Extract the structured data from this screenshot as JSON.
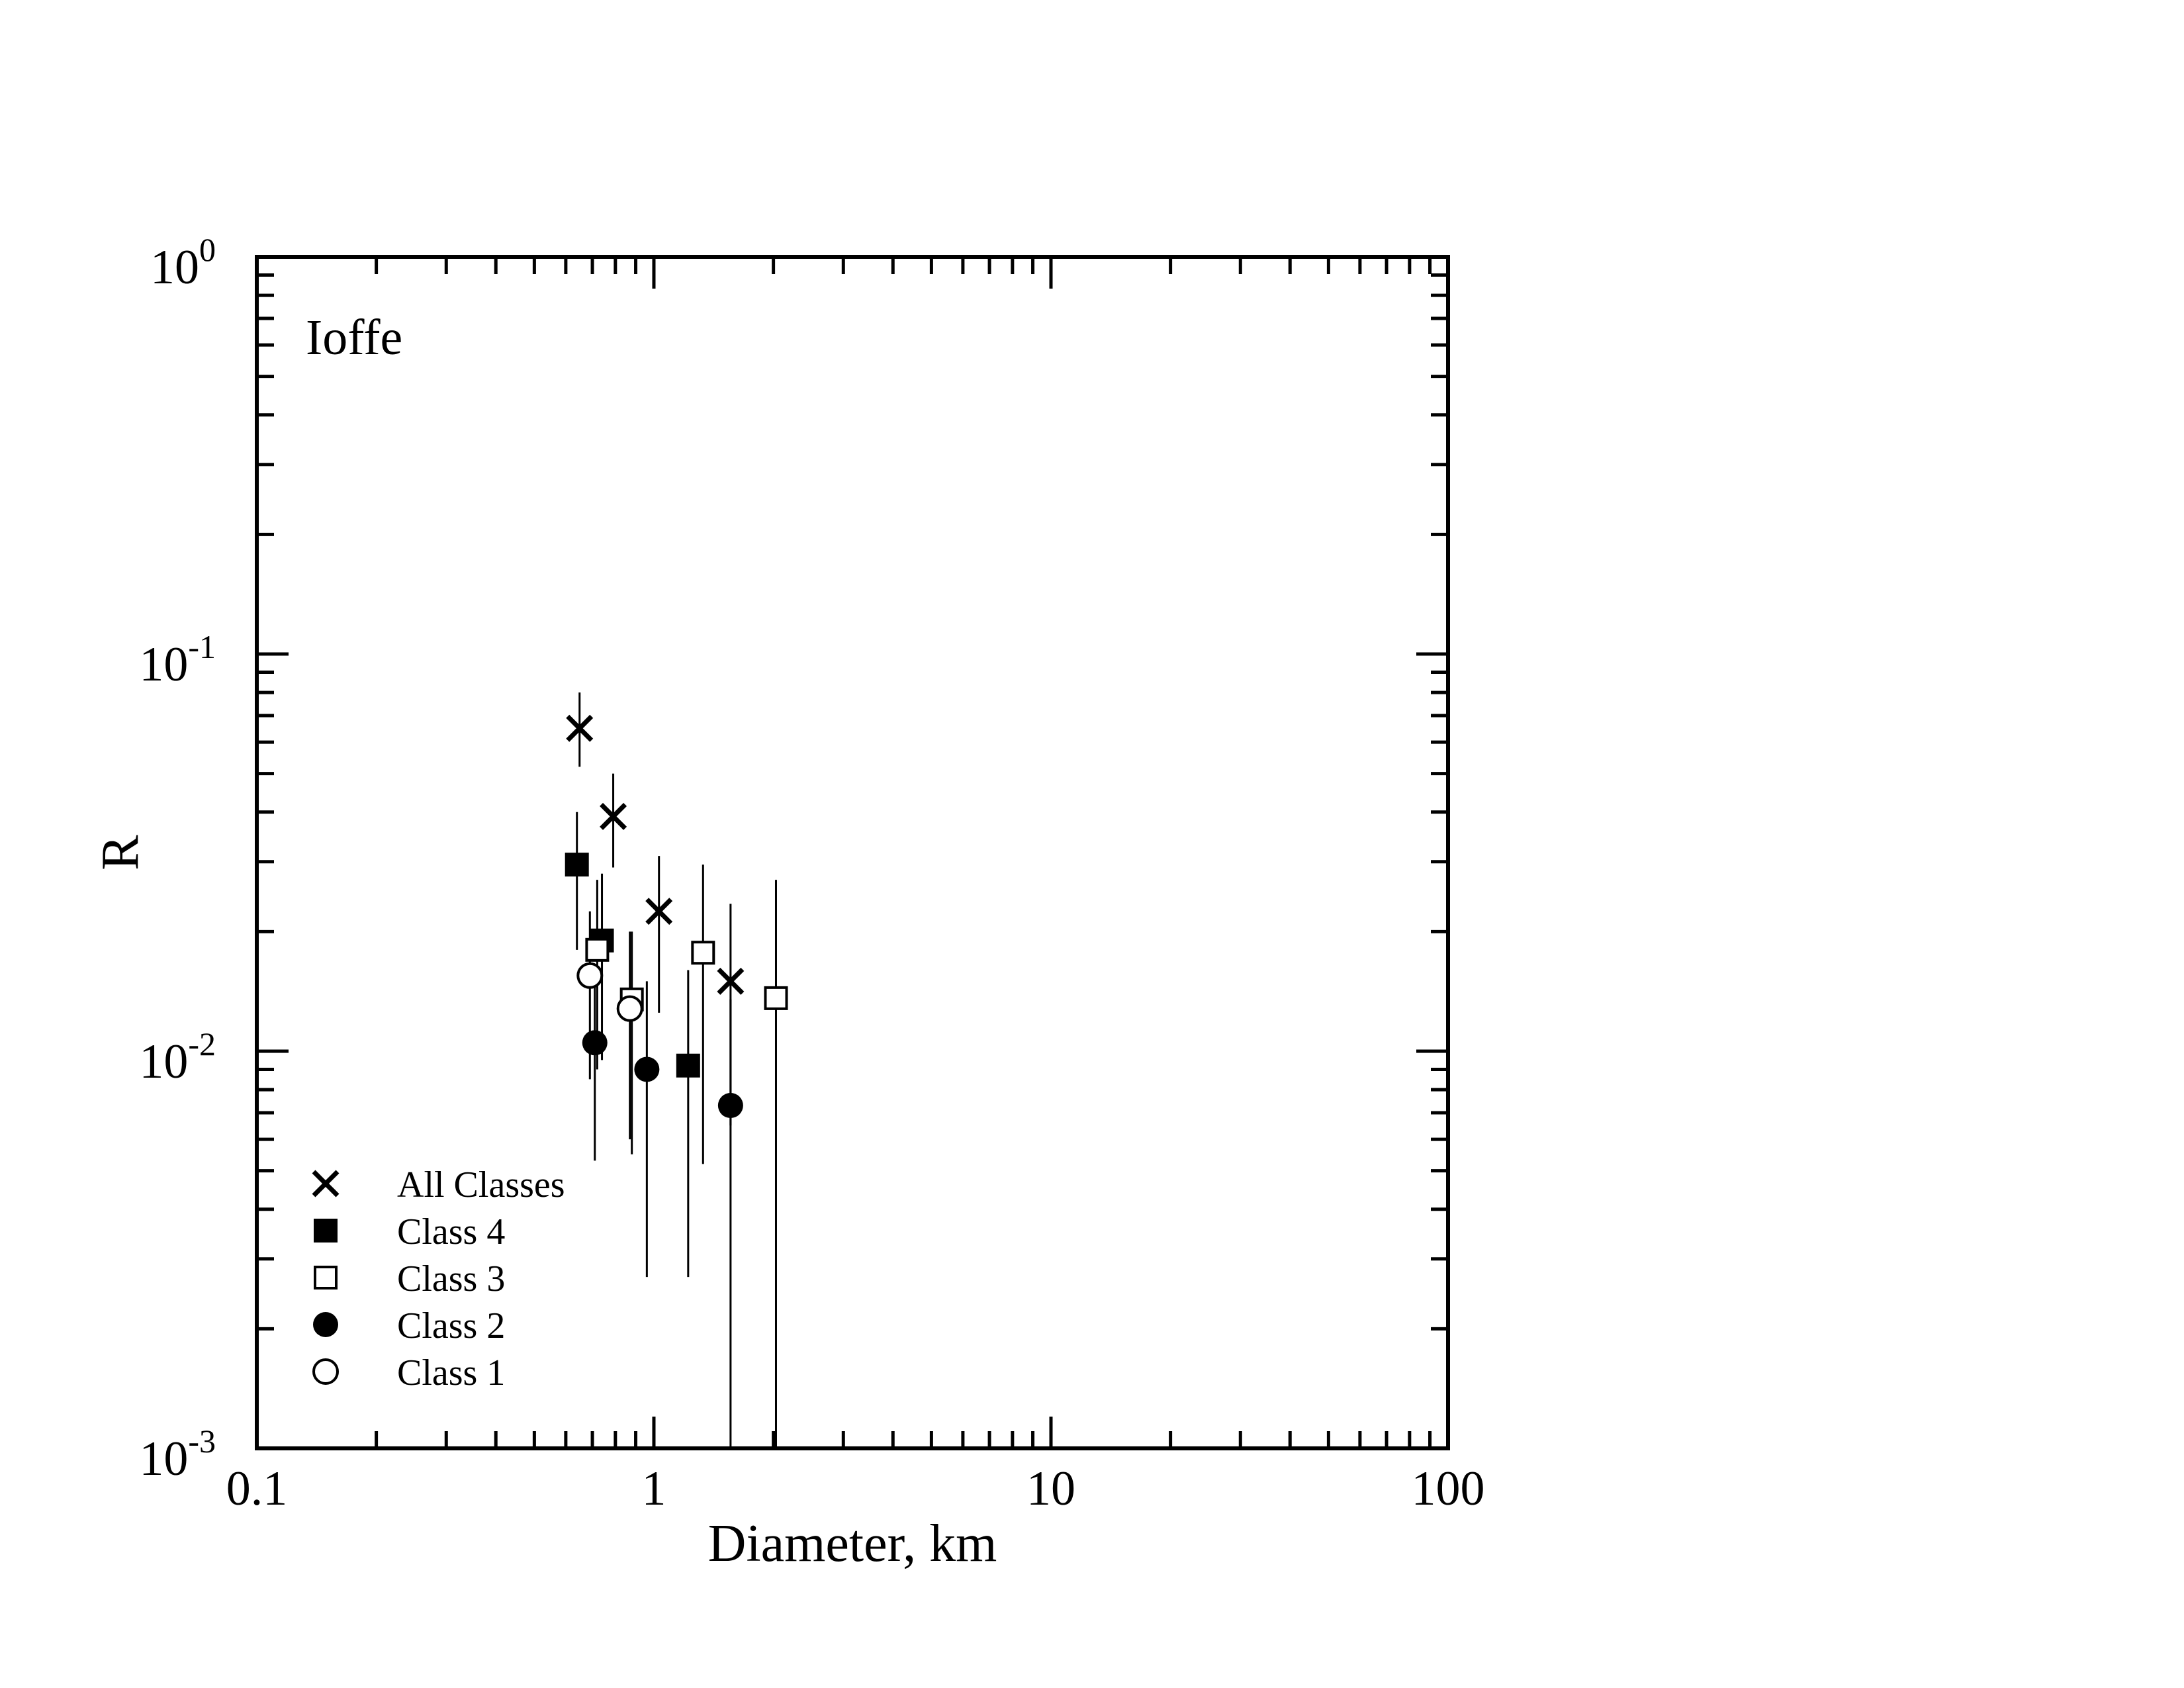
{
  "chart_data": {
    "type": "scatter",
    "title": "",
    "annotation": "Ioffe",
    "xlabel": "Diameter, km",
    "ylabel": "R",
    "xscale": "log",
    "yscale": "log",
    "xlim": [
      0.1,
      100
    ],
    "ylim": [
      0.001,
      1
    ],
    "x_ticks": [
      {
        "value": 0.1,
        "label": "0.1"
      },
      {
        "value": 1,
        "label": "1"
      },
      {
        "value": 10,
        "label": "10"
      },
      {
        "value": 100,
        "label": "100"
      }
    ],
    "y_ticks": [
      {
        "value": 0.001,
        "base": "10",
        "exp": "-3"
      },
      {
        "value": 0.01,
        "base": "10",
        "exp": "-2"
      },
      {
        "value": 0.1,
        "base": "10",
        "exp": "-1"
      },
      {
        "value": 1,
        "base": "10",
        "exp": "0"
      }
    ],
    "grid": false,
    "legend_position": "bottom-left",
    "series": [
      {
        "name": "All Classes",
        "marker": "x",
        "points": [
          {
            "x": 0.65,
            "y": 0.065,
            "ylo": 0.052,
            "yhi": 0.08
          },
          {
            "x": 0.79,
            "y": 0.039,
            "ylo": 0.029,
            "yhi": 0.05
          },
          {
            "x": 1.03,
            "y": 0.0225,
            "ylo": 0.0125,
            "yhi": 0.031
          },
          {
            "x": 1.56,
            "y": 0.015,
            "ylo": 0.0065,
            "yhi": 0.0235
          }
        ]
      },
      {
        "name": "Class 4",
        "marker": "filled-square",
        "points": [
          {
            "x": 0.64,
            "y": 0.0295,
            "ylo": 0.018,
            "yhi": 0.04
          },
          {
            "x": 0.74,
            "y": 0.019,
            "ylo": 0.0095,
            "yhi": 0.028
          },
          {
            "x": 1.22,
            "y": 0.0092,
            "ylo": 0.0027,
            "yhi": 0.016
          }
        ]
      },
      {
        "name": "Class 3",
        "marker": "open-square",
        "points": [
          {
            "x": 0.72,
            "y": 0.018,
            "ylo": 0.009,
            "yhi": 0.027
          },
          {
            "x": 0.88,
            "y": 0.0135,
            "ylo": 0.0055,
            "yhi": 0.02
          },
          {
            "x": 1.33,
            "y": 0.0177,
            "ylo": 0.0052,
            "yhi": 0.0295
          },
          {
            "x": 2.03,
            "y": 0.0136,
            "ylo": 0.001,
            "yhi": 0.027
          }
        ]
      },
      {
        "name": "Class 2",
        "marker": "filled-circle",
        "points": [
          {
            "x": 0.71,
            "y": 0.0105,
            "ylo": 0.0053,
            "yhi": 0.0155
          },
          {
            "x": 0.96,
            "y": 0.009,
            "ylo": 0.0027,
            "yhi": 0.015
          },
          {
            "x": 1.56,
            "y": 0.0073,
            "ylo": 0.001,
            "yhi": 0.0135
          }
        ]
      },
      {
        "name": "Class 1",
        "marker": "open-circle",
        "points": [
          {
            "x": 0.69,
            "y": 0.0155,
            "ylo": 0.0085,
            "yhi": 0.0225
          },
          {
            "x": 0.87,
            "y": 0.0128,
            "ylo": 0.006,
            "yhi": 0.02
          }
        ]
      }
    ]
  }
}
